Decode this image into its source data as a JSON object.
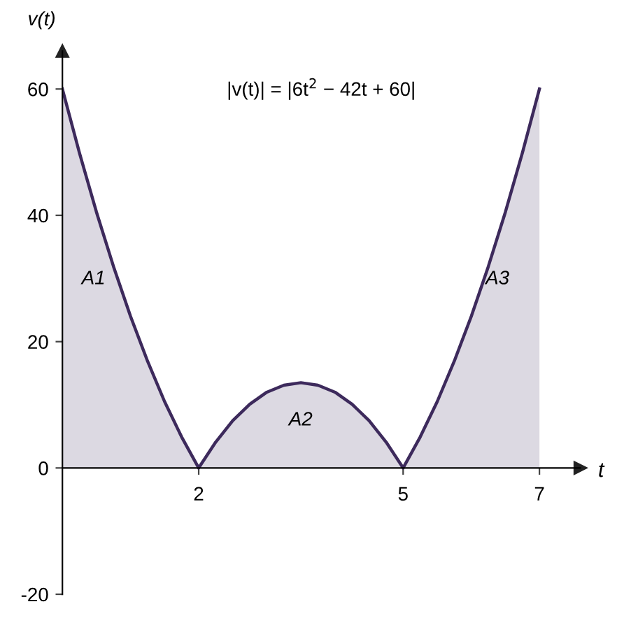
{
  "chart_data": {
    "type": "area",
    "xlabel": "t",
    "ylabel": "v(t)",
    "x": [
      0,
      0.25,
      0.5,
      0.75,
      1,
      1.25,
      1.5,
      1.75,
      2,
      2.25,
      2.5,
      2.75,
      3,
      3.25,
      3.5,
      3.75,
      4,
      4.25,
      4.5,
      4.75,
      5,
      5.25,
      5.5,
      5.75,
      6,
      6.25,
      6.5,
      6.75,
      7
    ],
    "series": [
      {
        "color": "#3d2a5c",
        "values": [
          60,
          49.9,
          40.5,
          31.9,
          24,
          16.9,
          10.5,
          4.9,
          0,
          4.1,
          7.5,
          10.1,
          12,
          13.1,
          13.5,
          13.1,
          12,
          10.1,
          7.5,
          4.1,
          0,
          4.9,
          10.5,
          16.9,
          24,
          31.9,
          40.5,
          49.9,
          60
        ]
      }
    ],
    "xlim": [
      0,
      7.6
    ],
    "ylim": [
      -20,
      66
    ],
    "xticks": [
      2,
      5,
      7
    ],
    "yticks": [
      -20,
      0,
      20,
      40,
      60
    ],
    "grid": false,
    "legend": false,
    "marker": "none",
    "line_style": "solid",
    "annotations": [
      "A1",
      "A2",
      "A3",
      "|v(t)| = |6t$^{2}$ − 42t + 60|"
    ]
  }
}
